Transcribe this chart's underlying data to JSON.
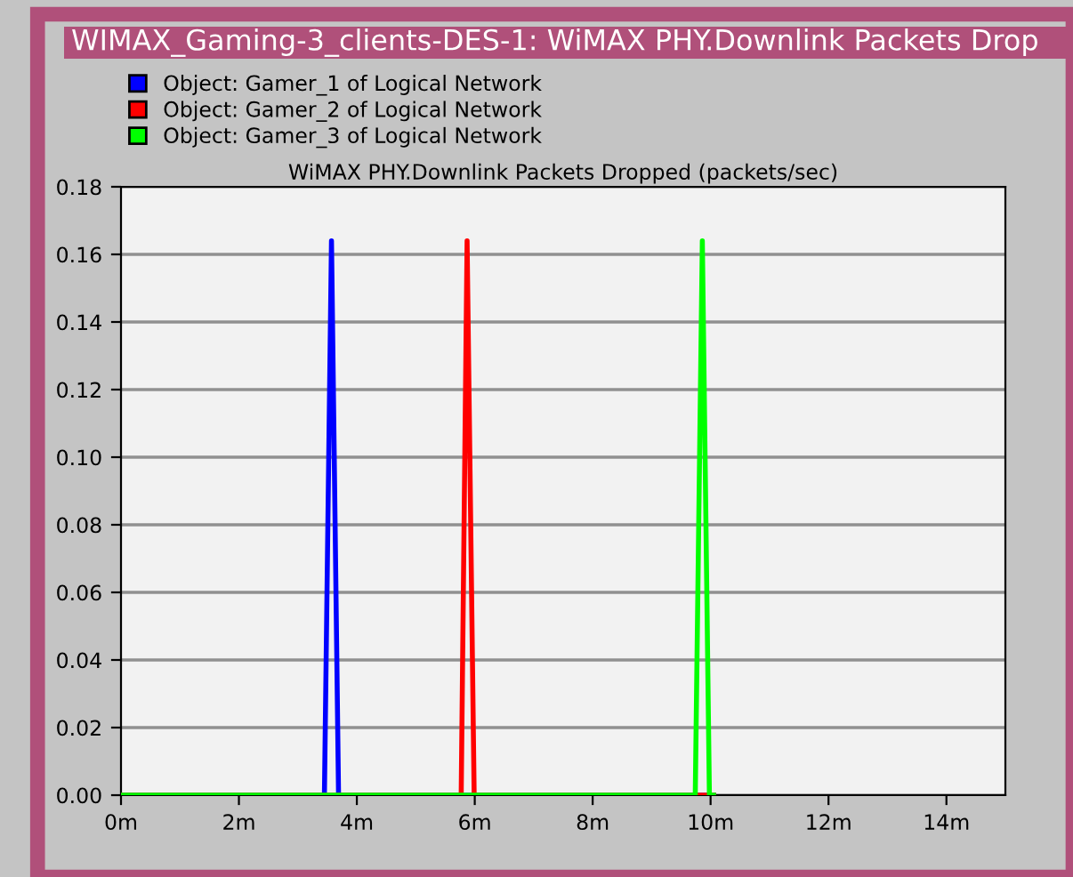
{
  "chart_data": {
    "type": "line",
    "title": "WIMAX_Gaming-3_clients-DES-1: WiMAX PHY.Downlink Packets Drop",
    "subtitle": "WiMAX PHY.Downlink Packets Dropped (packets/sec)",
    "series": [
      {
        "name": "Object: Gamer_1 of Logical Network",
        "color": "#0000ff",
        "x": [
          0,
          3.45,
          3.57,
          3.69,
          10.05
        ],
        "values": [
          0,
          0,
          0.164,
          0,
          0
        ]
      },
      {
        "name": "Object: Gamer_2 of Logical Network",
        "color": "#ff0000",
        "x": [
          0,
          5.77,
          5.87,
          5.99,
          10.05
        ],
        "values": [
          0,
          0,
          0.164,
          0,
          0
        ]
      },
      {
        "name": "Object: Gamer_3 of Logical Network",
        "color": "#00ff00",
        "x": [
          0,
          9.74,
          9.86,
          9.98,
          10.05
        ],
        "values": [
          0,
          0,
          0.164,
          0,
          0
        ]
      }
    ],
    "xlim": [
      0,
      15
    ],
    "xticks": [
      {
        "value": 0,
        "label": "0m"
      },
      {
        "value": 2,
        "label": "2m"
      },
      {
        "value": 4,
        "label": "4m"
      },
      {
        "value": 6,
        "label": "6m"
      },
      {
        "value": 8,
        "label": "8m"
      },
      {
        "value": 10,
        "label": "10m"
      },
      {
        "value": 12,
        "label": "12m"
      },
      {
        "value": 14,
        "label": "14m"
      }
    ],
    "ylim": [
      0,
      0.18
    ],
    "yticks": [
      {
        "value": 0,
        "label": "0.00"
      },
      {
        "value": 0.02,
        "label": "0.02"
      },
      {
        "value": 0.04,
        "label": "0.04"
      },
      {
        "value": 0.06,
        "label": "0.06"
      },
      {
        "value": 0.08,
        "label": "0.08"
      },
      {
        "value": 0.1,
        "label": "0.10"
      },
      {
        "value": 0.12,
        "label": "0.12"
      },
      {
        "value": 0.14,
        "label": "0.14"
      },
      {
        "value": 0.16,
        "label": "0.16"
      },
      {
        "value": 0.18,
        "label": "0.18"
      }
    ],
    "grid": "y",
    "legend": "top left"
  }
}
